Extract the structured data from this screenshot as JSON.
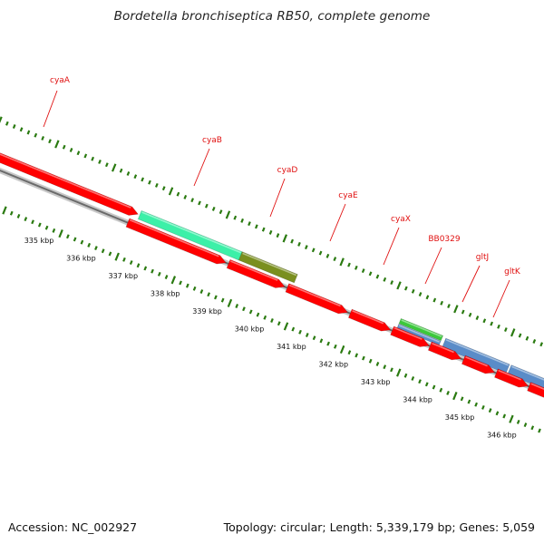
{
  "title": "Bordetella bronchiseptica RB50, complete genome",
  "footer": {
    "accession": "Accession: NC_002927",
    "summary": "Topology: circular; Length: 5,339,179 bp; Genes: 5,059"
  },
  "colors": {
    "gene_red": "#ff0000",
    "backbone_gray": "#808080",
    "tick_green": "#2a7a10",
    "label_red": "#e01010",
    "cyaB": "#3cf0a8",
    "cyaD": "#7a8f1f",
    "cyaX": "#3cc83c",
    "BB0329": "#5a8cc8",
    "gltJ": "#5a8cc8",
    "gltK": "#1010e0"
  },
  "scale_labels": [
    "335 kbp",
    "336 kbp",
    "337 kbp",
    "338 kbp",
    "339 kbp",
    "340 kbp",
    "341 kbp",
    "342 kbp",
    "343 kbp",
    "344 kbp",
    "345 kbp",
    "346 kbp"
  ],
  "genes_labeled": [
    "cyaA",
    "cyaB",
    "cyaD",
    "cyaE",
    "cyaX",
    "BB0329",
    "gltJ",
    "gltK"
  ]
}
